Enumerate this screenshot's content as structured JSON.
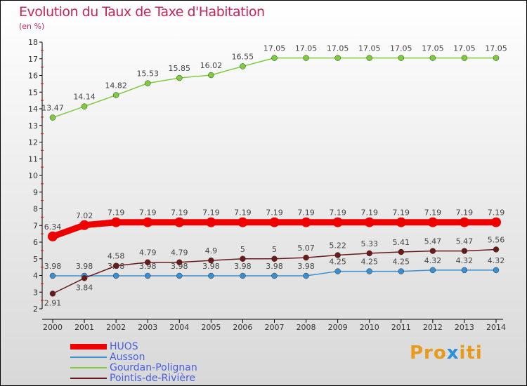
{
  "chart_data": {
    "type": "line",
    "title": "Evolution du Taux de Taxe d'Habitation",
    "subtitle": "(en %)",
    "x": [
      2000,
      2001,
      2002,
      2003,
      2004,
      2005,
      2006,
      2007,
      2008,
      2009,
      2010,
      2011,
      2012,
      2013,
      2014
    ],
    "ylim": [
      2,
      18
    ],
    "yticks": [
      2,
      3,
      4,
      5,
      6,
      7,
      8,
      9,
      10,
      11,
      12,
      13,
      14,
      15,
      16,
      17,
      18
    ],
    "series": [
      {
        "name": "HUOS",
        "color": "#ee0000",
        "values": [
          6.34,
          7.02,
          7.19,
          7.19,
          7.19,
          7.19,
          7.19,
          7.19,
          7.19,
          7.19,
          7.19,
          7.19,
          7.19,
          7.19,
          7.19
        ]
      },
      {
        "name": "Ausson",
        "color": "#3a8fd0",
        "values": [
          3.98,
          3.98,
          3.98,
          3.98,
          3.98,
          3.98,
          3.98,
          3.98,
          3.98,
          4.25,
          4.25,
          4.25,
          4.32,
          4.32,
          4.32
        ]
      },
      {
        "name": "Gourdan-Polignan",
        "color": "#7ccc3c",
        "values": [
          13.47,
          14.14,
          14.82,
          15.53,
          15.85,
          16.02,
          16.55,
          17.05,
          17.05,
          17.05,
          17.05,
          17.05,
          17.05,
          17.05,
          17.05
        ]
      },
      {
        "name": "Pointis-de-Rivière",
        "color": "#6a1a1a",
        "values": [
          2.91,
          3.84,
          4.58,
          4.79,
          4.79,
          4.9,
          5,
          5,
          5.07,
          5.22,
          5.33,
          5.41,
          5.47,
          5.47,
          5.56
        ]
      }
    ]
  },
  "logo": {
    "a": "Pro",
    "b": "x",
    "c": "iti"
  }
}
